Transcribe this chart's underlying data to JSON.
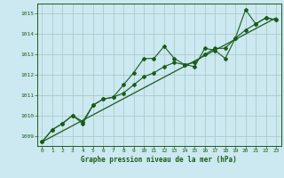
{
  "title": "Graphe pression niveau de la mer (hPa)",
  "bg_color": "#cce8f0",
  "grid_color": "#aacccc",
  "line_color": "#1a5c1a",
  "xlim": [
    -0.5,
    23.5
  ],
  "ylim": [
    1008.5,
    1015.5
  ],
  "yticks": [
    1009,
    1010,
    1011,
    1012,
    1013,
    1014,
    1015
  ],
  "xticks": [
    0,
    1,
    2,
    3,
    4,
    5,
    6,
    7,
    8,
    9,
    10,
    11,
    12,
    13,
    14,
    15,
    16,
    17,
    18,
    19,
    20,
    21,
    22,
    23
  ],
  "series1": [
    1008.7,
    1009.3,
    1009.6,
    1010.0,
    1009.6,
    1010.5,
    1010.8,
    1010.9,
    1011.5,
    1012.1,
    1012.8,
    1012.8,
    1013.4,
    1012.8,
    1012.5,
    1012.4,
    1013.3,
    1013.2,
    1012.8,
    1013.8,
    1015.2,
    1014.5,
    1014.8,
    1014.7
  ],
  "series2": [
    1008.7,
    1009.3,
    1009.6,
    1010.0,
    1009.7,
    1010.5,
    1010.8,
    1010.9,
    1011.1,
    1011.5,
    1011.9,
    1012.1,
    1012.4,
    1012.6,
    1012.5,
    1012.6,
    1013.0,
    1013.3,
    1013.3,
    1013.8,
    1014.2,
    1014.5,
    1014.8,
    1014.7
  ],
  "series3_x": [
    0,
    23
  ],
  "series3_y": [
    1008.7,
    1014.8
  ]
}
